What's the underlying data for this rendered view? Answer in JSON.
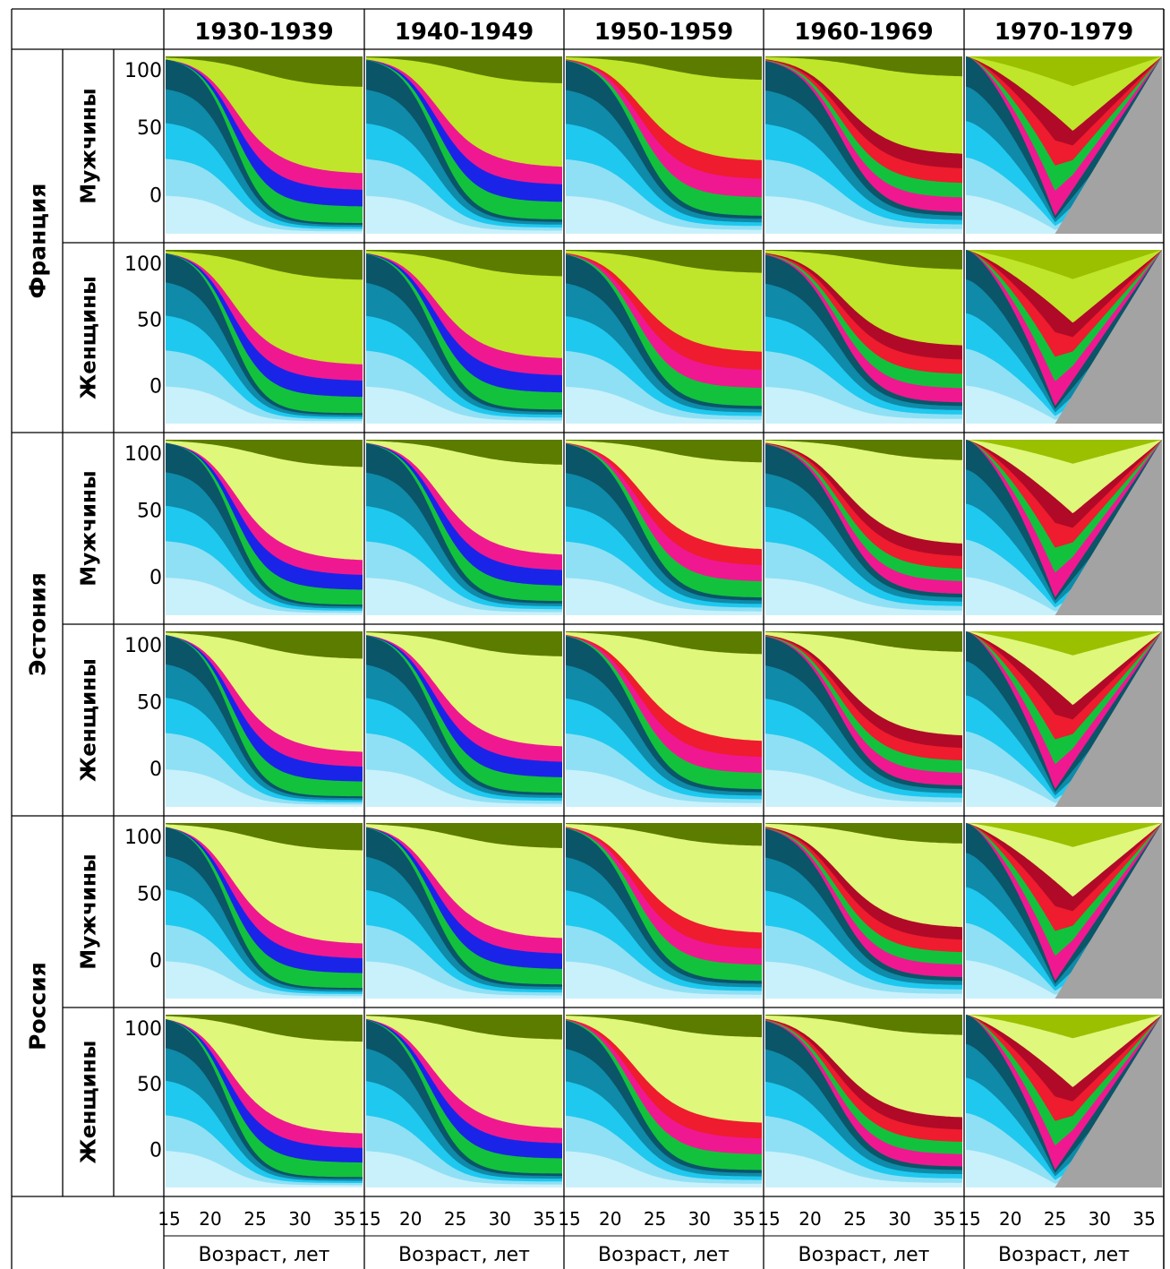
{
  "chart_data": {
    "type": "area",
    "columns": [
      "1930-1939",
      "1940-1949",
      "1950-1959",
      "1960-1969",
      "1970-1979"
    ],
    "countries": [
      {
        "name": "Франция",
        "rows": [
          "Мужчины",
          "Женщины"
        ]
      },
      {
        "name": "Эстония",
        "rows": [
          "Мужчины",
          "Женщины"
        ]
      },
      {
        "name": "Россия",
        "rows": [
          "Мужчины",
          "Женщины"
        ]
      }
    ],
    "y_ticks": [
      "100",
      "50",
      "0"
    ],
    "x_ticks": [
      "15",
      "20",
      "25",
      "30",
      "35"
    ],
    "xlabel": "Возраст, лет",
    "ylim": [
      0,
      100
    ],
    "xlim": [
      15,
      37
    ],
    "palette": {
      "single_light": "#c9f1fb",
      "single_mid": "#8fe0f5",
      "single_cyan": "#1fc8ee",
      "single_teal": "#0f8aa8",
      "single_dark": "#0a5568",
      "married_green": "#12c23c",
      "married_blue": "#1a24e8",
      "married_magenta": "#f01890",
      "married_red": "#ee1c2e",
      "married_darkred": "#b00a28",
      "divorced_lime": "#dff77a",
      "divorced_yellowgreen": "#bfe62a",
      "divorced_olive": "#9ac000",
      "divorced_dark": "#5c7c00",
      "censored_gray": "#a3a3a3"
    }
  }
}
